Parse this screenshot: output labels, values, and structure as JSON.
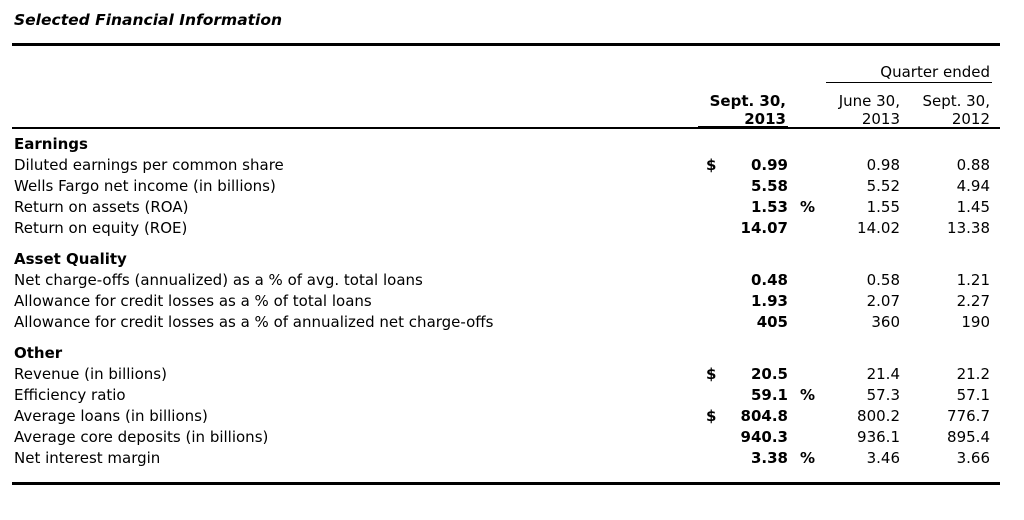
{
  "title": "Selected Financial Information",
  "header": {
    "quarter_ended": "Quarter ended",
    "col_current_line1": "Sept. 30,",
    "col_current_line2": "2013",
    "col_prior_q_line1": "June 30,",
    "col_prior_q_line2": "2013",
    "col_prior_y_line1": "Sept. 30,",
    "col_prior_y_line2": "2012"
  },
  "sections": [
    {
      "heading": "Earnings",
      "rows": [
        {
          "label": "Diluted earnings per common share",
          "prefix": "$",
          "current": "0.99",
          "suffix": "",
          "prior_q": "0.98",
          "prior_y": "0.88"
        },
        {
          "label": "Wells Fargo net income (in billions)",
          "prefix": "",
          "current": "5.58",
          "suffix": "",
          "prior_q": "5.52",
          "prior_y": "4.94"
        },
        {
          "label": "Return on assets (ROA)",
          "prefix": "",
          "current": "1.53",
          "suffix": "%",
          "prior_q": "1.55",
          "prior_y": "1.45"
        },
        {
          "label": "Return on equity (ROE)",
          "prefix": "",
          "current": "14.07",
          "suffix": "",
          "prior_q": "14.02",
          "prior_y": "13.38"
        }
      ]
    },
    {
      "heading": "Asset Quality",
      "rows": [
        {
          "label": "Net charge-offs (annualized) as a % of avg. total loans",
          "prefix": "",
          "current": "0.48",
          "suffix": "",
          "prior_q": "0.58",
          "prior_y": "1.21"
        },
        {
          "label": "Allowance for credit losses as a % of total loans",
          "prefix": "",
          "current": "1.93",
          "suffix": "",
          "prior_q": "2.07",
          "prior_y": "2.27"
        },
        {
          "label": "Allowance for credit losses as a % of annualized net charge-offs",
          "prefix": "",
          "current": "405",
          "suffix": "",
          "prior_q": "360",
          "prior_y": "190"
        }
      ]
    },
    {
      "heading": "Other",
      "rows": [
        {
          "label": "Revenue (in billions)",
          "prefix": "$",
          "current": "20.5",
          "suffix": "",
          "prior_q": "21.4",
          "prior_y": "21.2"
        },
        {
          "label": "Efficiency ratio",
          "prefix": "",
          "current": "59.1",
          "suffix": "%",
          "prior_q": "57.3",
          "prior_y": "57.1"
        },
        {
          "label": "Average loans (in billions)",
          "prefix": "$",
          "current": "804.8",
          "suffix": "",
          "prior_q": "800.2",
          "prior_y": "776.7"
        },
        {
          "label": "Average core deposits (in billions)",
          "prefix": "",
          "current": "940.3",
          "suffix": "",
          "prior_q": "936.1",
          "prior_y": "895.4"
        },
        {
          "label": "Net interest margin",
          "prefix": "",
          "current": "3.38",
          "suffix": "%",
          "prior_q": "3.46",
          "prior_y": "3.66"
        }
      ]
    }
  ]
}
